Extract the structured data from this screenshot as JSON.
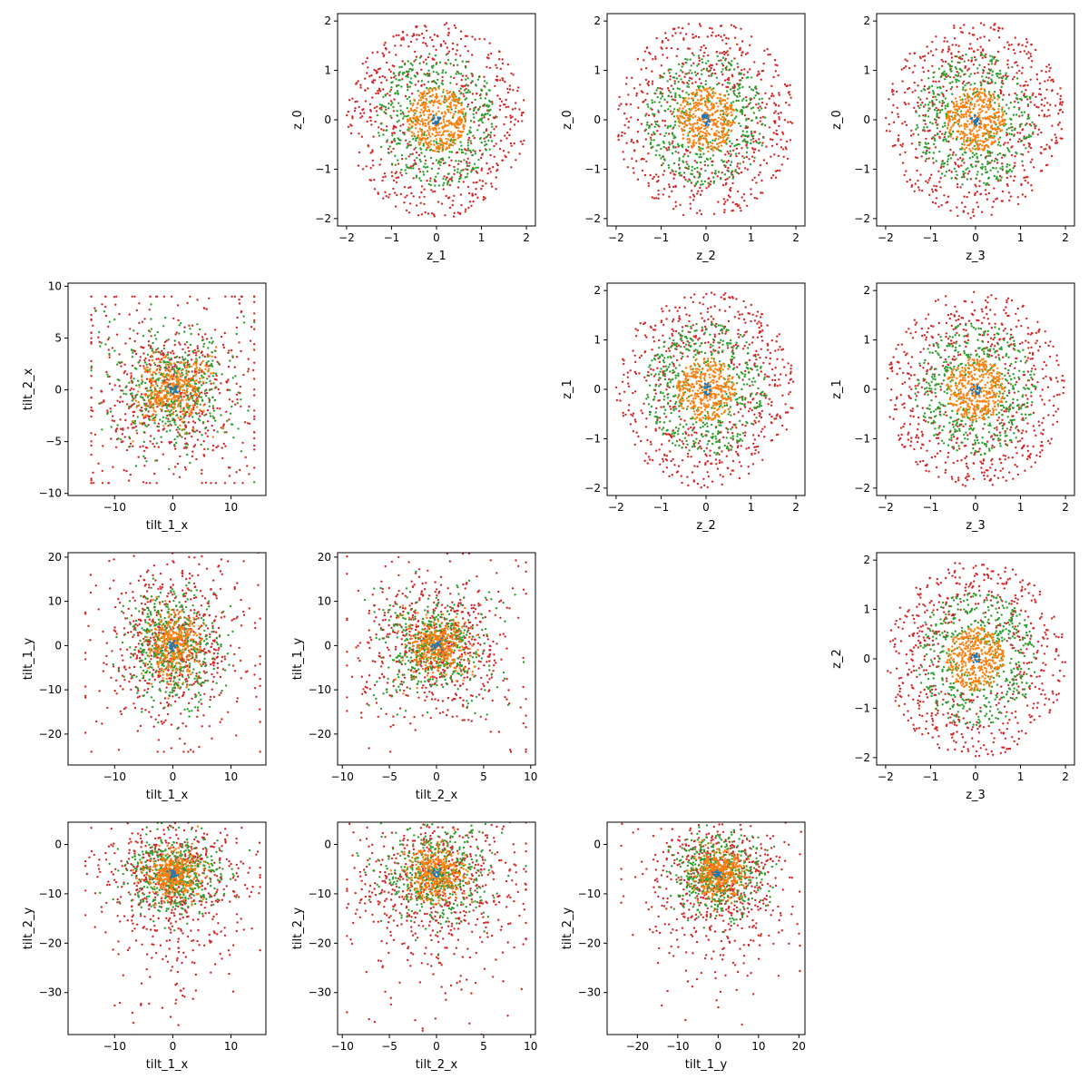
{
  "figure": {
    "layout": "4x4 pairwise scatter matrix",
    "series_colors": [
      "#1f77b4",
      "#ff7f0e",
      "#2ca02c",
      "#d62728"
    ],
    "note_series": "point clouds drawn in 4 colors; no legend is printed"
  },
  "chart_data": [
    {
      "type": "scatter",
      "xlabel": "z_1",
      "ylabel": "z_0",
      "xlim": [
        -2.2,
        2.2
      ],
      "ylim": [
        -2.15,
        2.15
      ],
      "xticks": [
        -2,
        -1,
        0,
        1,
        2
      ],
      "yticks": [
        -2,
        -1,
        0,
        1,
        2
      ],
      "xtick_labels": [
        "−2",
        "−1",
        "0",
        "1",
        "2"
      ],
      "ytick_labels": [
        "−2",
        "−1",
        "0",
        "1",
        "2"
      ],
      "cloud": {
        "kind": "disk",
        "series_radii": [
          0.12,
          0.65,
          1.35,
          2.0
        ],
        "counts": [
          20,
          400,
          450,
          600
        ]
      }
    },
    {
      "type": "scatter",
      "xlabel": "z_2",
      "ylabel": "z_0",
      "xlim": [
        -2.2,
        2.2
      ],
      "ylim": [
        -2.15,
        2.15
      ],
      "xticks": [
        -2,
        -1,
        0,
        1,
        2
      ],
      "yticks": [
        -2,
        -1,
        0,
        1,
        2
      ],
      "xtick_labels": [
        "−2",
        "−1",
        "0",
        "1",
        "2"
      ],
      "ytick_labels": [
        "−2",
        "−1",
        "0",
        "1",
        "2"
      ],
      "cloud": {
        "kind": "disk",
        "series_radii": [
          0.12,
          0.65,
          1.35,
          2.0
        ],
        "counts": [
          20,
          400,
          450,
          600
        ]
      }
    },
    {
      "type": "scatter",
      "xlabel": "z_3",
      "ylabel": "z_0",
      "xlim": [
        -2.2,
        2.2
      ],
      "ylim": [
        -2.15,
        2.15
      ],
      "xticks": [
        -2,
        -1,
        0,
        1,
        2
      ],
      "yticks": [
        -2,
        -1,
        0,
        1,
        2
      ],
      "xtick_labels": [
        "−2",
        "−1",
        "0",
        "1",
        "2"
      ],
      "ytick_labels": [
        "−2",
        "−1",
        "0",
        "1",
        "2"
      ],
      "cloud": {
        "kind": "disk",
        "series_radii": [
          0.12,
          0.65,
          1.35,
          2.0
        ],
        "counts": [
          20,
          400,
          450,
          600
        ]
      }
    },
    {
      "type": "scatter",
      "xlabel": "tilt_1_x",
      "ylabel": "tilt_2_x",
      "xlim": [
        -18,
        16
      ],
      "ylim": [
        -10.2,
        10.3
      ],
      "xticks": [
        -10,
        0,
        10
      ],
      "yticks": [
        -10,
        -5,
        0,
        5,
        10
      ],
      "xtick_labels": [
        "−10",
        "0",
        "10"
      ],
      "ytick_labels": [
        "−10",
        "−5",
        "0",
        "5",
        "10"
      ],
      "cloud": {
        "kind": "bowtie",
        "center": [
          0,
          0
        ],
        "spread": [
          6.5,
          3.2
        ],
        "max": [
          14,
          9
        ],
        "counts": [
          20,
          350,
          450,
          650
        ]
      }
    },
    {
      "type": "scatter",
      "xlabel": "z_2",
      "ylabel": "z_1",
      "xlim": [
        -2.2,
        2.2
      ],
      "ylim": [
        -2.15,
        2.15
      ],
      "xticks": [
        -2,
        -1,
        0,
        1,
        2
      ],
      "yticks": [
        -2,
        -1,
        0,
        1,
        2
      ],
      "xtick_labels": [
        "−2",
        "−1",
        "0",
        "1",
        "2"
      ],
      "ytick_labels": [
        "−2",
        "−1",
        "0",
        "1",
        "2"
      ],
      "cloud": {
        "kind": "disk",
        "series_radii": [
          0.12,
          0.65,
          1.35,
          2.0
        ],
        "counts": [
          20,
          400,
          450,
          600
        ]
      }
    },
    {
      "type": "scatter",
      "xlabel": "z_3",
      "ylabel": "z_1",
      "xlim": [
        -2.2,
        2.2
      ],
      "ylim": [
        -2.15,
        2.15
      ],
      "xticks": [
        -2,
        -1,
        0,
        1,
        2
      ],
      "yticks": [
        -2,
        -1,
        0,
        1,
        2
      ],
      "xtick_labels": [
        "−2",
        "−1",
        "0",
        "1",
        "2"
      ],
      "ytick_labels": [
        "−2",
        "−1",
        "0",
        "1",
        "2"
      ],
      "cloud": {
        "kind": "disk",
        "series_radii": [
          0.12,
          0.65,
          1.35,
          2.0
        ],
        "counts": [
          20,
          400,
          450,
          600
        ]
      }
    },
    {
      "type": "scatter",
      "xlabel": "tilt_1_x",
      "ylabel": "tilt_1_y",
      "xlim": [
        -18,
        16
      ],
      "ylim": [
        -27,
        21
      ],
      "xticks": [
        -10,
        0,
        10
      ],
      "yticks": [
        -20,
        -10,
        0,
        10,
        20
      ],
      "xtick_labels": [
        "−10",
        "0",
        "10"
      ],
      "ytick_labels": [
        "−20",
        "−10",
        "0",
        "10",
        "20"
      ],
      "cloud": {
        "kind": "blob",
        "center": [
          0,
          0
        ],
        "spread": [
          5,
          8
        ],
        "max": [
          15,
          24
        ],
        "counts": [
          20,
          350,
          450,
          650
        ]
      }
    },
    {
      "type": "scatter",
      "xlabel": "tilt_2_x",
      "ylabel": "tilt_1_y",
      "xlim": [
        -10.5,
        10.5
      ],
      "ylim": [
        -27,
        21
      ],
      "xticks": [
        -10,
        -5,
        0,
        5,
        10
      ],
      "yticks": [
        -20,
        -10,
        0,
        10,
        20
      ],
      "xtick_labels": [
        "−10",
        "−5",
        "0",
        "5",
        "10"
      ],
      "ytick_labels": [
        "−20",
        "−10",
        "0",
        "10",
        "20"
      ],
      "cloud": {
        "kind": "bowtie",
        "center": [
          0,
          0
        ],
        "spread": [
          3.5,
          6
        ],
        "max": [
          9.5,
          24
        ],
        "counts": [
          20,
          350,
          450,
          650
        ]
      }
    },
    {
      "type": "scatter",
      "xlabel": "z_3",
      "ylabel": "z_2",
      "xlim": [
        -2.2,
        2.2
      ],
      "ylim": [
        -2.15,
        2.15
      ],
      "xticks": [
        -2,
        -1,
        0,
        1,
        2
      ],
      "yticks": [
        -2,
        -1,
        0,
        1,
        2
      ],
      "xtick_labels": [
        "−2",
        "−1",
        "0",
        "1",
        "2"
      ],
      "ytick_labels": [
        "−2",
        "−1",
        "0",
        "1",
        "2"
      ],
      "cloud": {
        "kind": "disk",
        "series_radii": [
          0.12,
          0.65,
          1.35,
          2.0
        ],
        "counts": [
          20,
          400,
          450,
          600
        ]
      }
    },
    {
      "type": "scatter",
      "xlabel": "tilt_1_x",
      "ylabel": "tilt_2_y",
      "xlim": [
        -18,
        16
      ],
      "ylim": [
        -38.5,
        4.5
      ],
      "xticks": [
        -10,
        0,
        10
      ],
      "yticks": [
        -30,
        -20,
        -10,
        0
      ],
      "xtick_labels": [
        "−10",
        "0",
        "10"
      ],
      "ytick_labels": [
        "−30",
        "−20",
        "−10",
        "0"
      ],
      "cloud": {
        "kind": "blob",
        "center": [
          0,
          -6
        ],
        "spread": [
          5,
          5
        ],
        "max": [
          15,
          34
        ],
        "counts": [
          20,
          350,
          450,
          650
        ]
      }
    },
    {
      "type": "scatter",
      "xlabel": "tilt_2_x",
      "ylabel": "tilt_2_y",
      "xlim": [
        -10.5,
        10.5
      ],
      "ylim": [
        -38.5,
        4.5
      ],
      "xticks": [
        -10,
        -5,
        0,
        5,
        10
      ],
      "yticks": [
        -30,
        -20,
        -10,
        0
      ],
      "xtick_labels": [
        "−10",
        "−5",
        "0",
        "5",
        "10"
      ],
      "ytick_labels": [
        "−30",
        "−20",
        "−10",
        "0"
      ],
      "cloud": {
        "kind": "blob",
        "center": [
          0,
          -6
        ],
        "spread": [
          3.5,
          6
        ],
        "max": [
          9.5,
          34
        ],
        "counts": [
          20,
          350,
          450,
          650
        ]
      }
    },
    {
      "type": "scatter",
      "xlabel": "tilt_1_y",
      "ylabel": "tilt_2_y",
      "xlim": [
        -27.5,
        21.5
      ],
      "ylim": [
        -38.5,
        4.5
      ],
      "xticks": [
        -20,
        -10,
        0,
        10,
        20
      ],
      "yticks": [
        -30,
        -20,
        -10,
        0
      ],
      "xtick_labels": [
        "−20",
        "−10",
        "0",
        "10",
        "20"
      ],
      "ytick_labels": [
        "−30",
        "−20",
        "−10",
        "0"
      ],
      "cloud": {
        "kind": "blob",
        "center": [
          0,
          -6
        ],
        "spread": [
          7,
          5
        ],
        "max": [
          24,
          34
        ],
        "counts": [
          20,
          350,
          450,
          650
        ]
      }
    }
  ]
}
